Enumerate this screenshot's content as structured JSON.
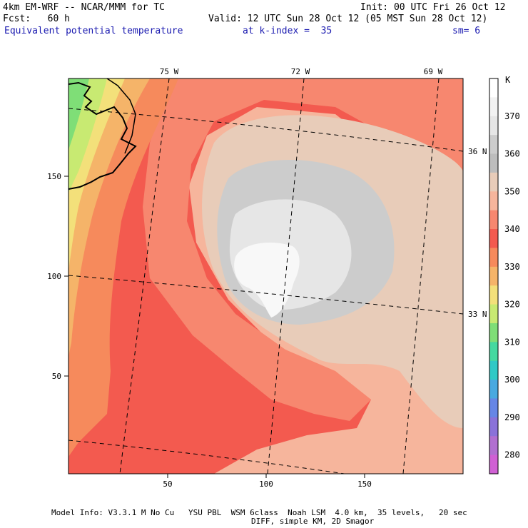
{
  "header": {
    "model_line": "4km EM-WRF -- NCAR/MMM for TC",
    "init_line": "Init: 00 UTC Fri 26 Oct 12",
    "fcst_line": "Fcst:   60 h",
    "valid_line": "Valid: 12 UTC Sun 28 Oct 12 (05 MST Sun 28 Oct 12)",
    "field_name": "Equivalent potential temperature",
    "level_text": "at k-index =  35",
    "smooth_text": "sm= 6"
  },
  "map": {
    "lon_labels": [
      "75 W",
      "72 W",
      "69 W"
    ],
    "lat_labels": [
      "36 N",
      "33 N"
    ],
    "x_ticks": [
      "50",
      "100",
      "150"
    ],
    "y_ticks": [
      "150",
      "100",
      "50"
    ]
  },
  "colorbar": {
    "unit": "K",
    "levels": [
      "370",
      "360",
      "350",
      "340",
      "330",
      "320",
      "310",
      "300",
      "290",
      "280"
    ],
    "colors": [
      "#ffffff",
      "#f2f2f2",
      "#e6e6e6",
      "#cccccc",
      "#bdbdbd",
      "#e8ccb9",
      "#f6b59c",
      "#f7876f",
      "#f35a4f",
      "#f68a5c",
      "#f5b469",
      "#f3e07a",
      "#c8ea72",
      "#7fde77",
      "#45d9a0",
      "#2fc9c6",
      "#49a9e0",
      "#6686e6",
      "#8a72d9",
      "#b16fd0",
      "#d060d4"
    ]
  },
  "footer": {
    "line1": "Model Info: V3.3.1 M No Cu   YSU PBL  WSM 6class  Noah LSM  4.0 km,  35 levels,   20 sec",
    "line2": "DIFF, simple KM, 2D Smagor"
  }
}
